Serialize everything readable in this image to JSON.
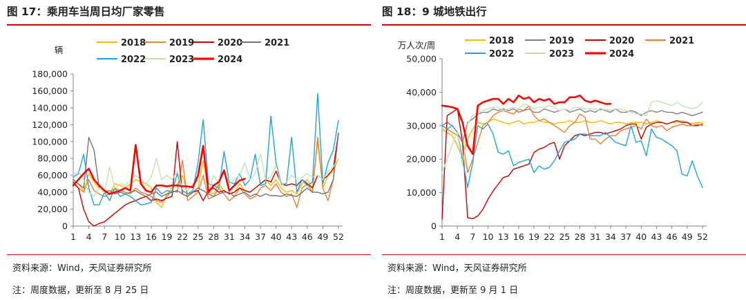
{
  "left": {
    "title": "图 17：乘用车当周日均厂家零售",
    "source": "资料来源：Wind，天风证券研究所",
    "note": "注：周度数据，更新至 8 月 25 日"
  },
  "right": {
    "title": "图 18：9 城地铁出行",
    "source": "资料来源：Wind，天风证券研究所",
    "note": "注：周度数据，更新至 9 月 1 日"
  },
  "chart_data": [
    {
      "type": "line",
      "ylabel": "辆",
      "ylim": [
        0,
        180000
      ],
      "yticks": [
        0,
        20000,
        40000,
        60000,
        80000,
        100000,
        120000,
        140000,
        160000,
        180000
      ],
      "ytick_labels": [
        "0",
        "20,000",
        "40,000",
        "60,000",
        "80,000",
        "100,000",
        "120,000",
        "140,000",
        "160,000",
        "180,000"
      ],
      "xlim": [
        1,
        52
      ],
      "xticks": [
        1,
        4,
        7,
        10,
        13,
        16,
        19,
        22,
        25,
        28,
        31,
        34,
        37,
        40,
        43,
        46,
        49,
        52
      ],
      "legend_position": "top",
      "grid": false,
      "series": [
        {
          "name": "2018",
          "color": "#f5b800",
          "width": 1.4,
          "values": [
            55000,
            50000,
            42000,
            62000,
            52000,
            45000,
            40000,
            38000,
            50000,
            48000,
            45000,
            50000,
            55000,
            52000,
            50000,
            45000,
            28000,
            22000,
            38000,
            45000,
            50000,
            60000,
            38000,
            40000,
            45000,
            78000,
            40000,
            38000,
            50000,
            42000,
            38000,
            40000,
            50000,
            42000,
            40000,
            45000,
            50000,
            55000,
            48000,
            55000,
            45000,
            40000,
            42000,
            38000,
            50000,
            55000,
            45000,
            100000,
            45000,
            60000,
            65000,
            80000
          ]
        },
        {
          "name": "2019",
          "color": "#ed7d31",
          "width": 1.4,
          "values": [
            50000,
            45000,
            40000,
            55000,
            42000,
            38000,
            35000,
            38000,
            45000,
            42000,
            40000,
            38000,
            45000,
            40000,
            38000,
            35000,
            30000,
            28000,
            35000,
            42000,
            40000,
            78000,
            30000,
            35000,
            40000,
            60000,
            32000,
            35000,
            45000,
            38000,
            30000,
            35000,
            45000,
            38000,
            32000,
            35000,
            45000,
            48000,
            42000,
            50000,
            40000,
            35000,
            38000,
            22000,
            45000,
            50000,
            40000,
            105000,
            45000,
            30000,
            55000,
            110000
          ]
        },
        {
          "name": "2020",
          "color": "#c00000",
          "width": 1.4,
          "values": [
            52000,
            45000,
            20000,
            5000,
            0,
            3000,
            5000,
            10000,
            15000,
            20000,
            25000,
            28000,
            30000,
            33000,
            35000,
            30000,
            32000,
            30000,
            33000,
            35000,
            100000,
            38000,
            35000,
            40000,
            42000,
            30000,
            42000,
            45000,
            40000,
            42000,
            38000,
            40000,
            45000,
            42000,
            40000,
            45000,
            50000,
            55000,
            52000,
            65000,
            50000,
            48000,
            50000,
            48000,
            55000,
            50000,
            45000,
            60000,
            55000,
            60000,
            68000,
            110000
          ]
        },
        {
          "name": "2021",
          "color": "#767171",
          "width": 1.4,
          "values": [
            55000,
            50000,
            45000,
            105000,
            90000,
            45000,
            40000,
            42000,
            38000,
            40000,
            38000,
            40000,
            42000,
            38000,
            35000,
            38000,
            40000,
            35000,
            38000,
            40000,
            42000,
            38000,
            35000,
            40000,
            45000,
            42000,
            38000,
            35000,
            38000,
            40000,
            40000,
            35000,
            38000,
            40000,
            35000,
            38000,
            35000,
            38000,
            36000,
            36000,
            35000,
            38000,
            36000,
            35000,
            40000,
            45000,
            40000,
            40000,
            38000,
            40000,
            55000,
            110000
          ]
        },
        {
          "name": "2022",
          "color": "#1fa2d9",
          "width": 1.4,
          "values": [
            58000,
            62000,
            85000,
            45000,
            25000,
            25000,
            40000,
            30000,
            45000,
            35000,
            38000,
            35000,
            30000,
            25000,
            26000,
            28000,
            45000,
            38000,
            42000,
            40000,
            62000,
            42000,
            38000,
            42000,
            75000,
            126000,
            50000,
            48000,
            45000,
            88000,
            52000,
            50000,
            62000,
            48000,
            55000,
            85000,
            48000,
            50000,
            130000,
            75000,
            50000,
            50000,
            105000,
            40000,
            55000,
            48000,
            52000,
            157000,
            50000,
            75000,
            90000,
            125000
          ]
        },
        {
          "name": "2023",
          "color": "#c6e0b4",
          "width": 1.4,
          "values": [
            60000,
            65000,
            55000,
            40000,
            35000,
            45000,
            40000,
            70000,
            45000,
            50000,
            48000,
            55000,
            60000,
            55000,
            50000,
            58000,
            80000,
            55000,
            60000,
            55000,
            65000,
            45000,
            42000,
            50000,
            55000,
            95000,
            40000,
            60000,
            50000,
            65000,
            50000,
            55000,
            60000,
            75000,
            55000,
            62000,
            85000,
            55000,
            58000,
            72000,
            48000,
            52000,
            60000,
            55000,
            58000,
            62000,
            58000,
            60000,
            55000,
            65000,
            70000,
            80000
          ]
        },
        {
          "name": "2024",
          "color": "#ff0000",
          "width": 2.6,
          "values": [
            48000,
            55000,
            62000,
            68000,
            55000,
            48000,
            42000,
            38000,
            40000,
            42000,
            45000,
            42000,
            96000,
            50000,
            42000,
            40000,
            48000,
            48000,
            47000,
            48000,
            48000,
            47000,
            47000,
            46000,
            60000,
            95000,
            40000,
            48000,
            52000,
            66000,
            42000,
            48000,
            54000,
            56000,
            null,
            null,
            null,
            null,
            null,
            null,
            null,
            null,
            null,
            null,
            null,
            null,
            null,
            null,
            null,
            null,
            null,
            null
          ]
        }
      ]
    },
    {
      "type": "line",
      "ylabel": "万人次/周",
      "ylim": [
        0,
        50000
      ],
      "yticks": [
        0,
        10000,
        20000,
        30000,
        40000,
        50000
      ],
      "ytick_labels": [
        "0",
        "10,000",
        "20,000",
        "30,000",
        "40,000",
        "50,000"
      ],
      "xlim": [
        1,
        52
      ],
      "xticks": [
        1,
        4,
        7,
        10,
        13,
        16,
        19,
        22,
        25,
        28,
        31,
        34,
        37,
        40,
        43,
        46,
        49,
        52
      ],
      "legend_position": "top",
      "grid": false,
      "series": [
        {
          "name": "2018",
          "color": "#f5b800",
          "width": 1.4,
          "values": [
            29000,
            28000,
            27000,
            24000,
            20000,
            26000,
            29000,
            31000,
            30500,
            31000,
            32000,
            31500,
            31000,
            30500,
            31000,
            31500,
            30500,
            31000,
            31000,
            31500,
            31000,
            31000,
            30500,
            31000,
            31000,
            31500,
            31000,
            31000,
            31500,
            31000,
            31000,
            31500,
            31000,
            30500,
            31000,
            31000,
            30500,
            31000,
            31000,
            31000,
            30500,
            31000,
            31500,
            31000,
            30500,
            31000,
            31000,
            31500,
            31000,
            30500,
            31000,
            31000
          ]
        },
        {
          "name": "2019",
          "color": "#7f7f7f",
          "width": 1.4,
          "values": [
            30000,
            31000,
            30000,
            28000,
            25000,
            31000,
            32000,
            33500,
            34000,
            34000,
            35000,
            34500,
            35000,
            34500,
            35000,
            34000,
            34500,
            35000,
            34000,
            34000,
            35000,
            34500,
            34000,
            34500,
            35000,
            34000,
            34500,
            35000,
            34000,
            34500,
            34000,
            35000,
            34500,
            34000,
            35000,
            34000,
            34000,
            34500,
            34000,
            33000,
            34000,
            34500,
            34000,
            34500,
            34000,
            34000,
            33500,
            34000,
            33500,
            33000,
            33500,
            34000
          ]
        },
        {
          "name": "2020",
          "color": "#c00000",
          "width": 1.4,
          "values": [
            2000,
            33000,
            34000,
            35000,
            25000,
            2500,
            2200,
            3000,
            5000,
            8000,
            10500,
            12500,
            14500,
            15000,
            17000,
            17500,
            18000,
            18500,
            22000,
            23000,
            23500,
            24500,
            25000,
            20000,
            24000,
            25500,
            27000,
            27500,
            27000,
            27500,
            28000,
            28000,
            27500,
            28000,
            28500,
            29000,
            30000,
            30500,
            30500,
            26000,
            29500,
            30500,
            31000,
            31000,
            30500,
            31000,
            31500,
            31000,
            31000,
            30000,
            30000,
            30500
          ]
        },
        {
          "name": "2021",
          "color": "#ed7d31",
          "width": 1.4,
          "values": [
            30000,
            29000,
            28000,
            27000,
            26000,
            16000,
            20000,
            25000,
            30000,
            31000,
            33000,
            34000,
            34500,
            34000,
            33500,
            35000,
            34500,
            36000,
            33000,
            31500,
            32000,
            31000,
            30000,
            29000,
            28000,
            30000,
            31000,
            33500,
            32500,
            26000,
            26000,
            24500,
            26000,
            27000,
            27000,
            28500,
            29000,
            29500,
            30000,
            29000,
            32000,
            30000,
            29500,
            30000,
            28500,
            29500,
            30000,
            30500,
            30000,
            30000,
            30500,
            30000
          ]
        },
        {
          "name": "2022",
          "color": "#1fa2d9",
          "width": 1.4,
          "values": [
            30000,
            29000,
            30000,
            28000,
            20000,
            11500,
            19000,
            30000,
            29000,
            30500,
            27500,
            22000,
            21500,
            22500,
            18000,
            19000,
            19500,
            20000,
            16000,
            18000,
            17000,
            17500,
            19500,
            22500,
            25000,
            25500,
            26000,
            27500,
            27500,
            27000,
            27000,
            27000,
            28000,
            26500,
            25000,
            24500,
            24000,
            30000,
            25000,
            25500,
            21000,
            29000,
            26500,
            26000,
            25000,
            24000,
            22500,
            15500,
            15000,
            19500,
            15000,
            11500
          ]
        },
        {
          "name": "2023",
          "color": "#c6e0b4",
          "width": 1.4,
          "values": [
            16000,
            20000,
            24500,
            28000,
            18000,
            30500,
            33000,
            34000,
            34500,
            35000,
            35500,
            35500,
            34500,
            35000,
            35500,
            35000,
            36500,
            36000,
            35000,
            35500,
            35500,
            36000,
            35500,
            34500,
            35000,
            34500,
            35500,
            35500,
            35000,
            35000,
            35000,
            34500,
            35000,
            34500,
            35000,
            35000,
            34500,
            34000,
            33500,
            33500,
            33000,
            37000,
            37500,
            37000,
            36500,
            36000,
            37000,
            36000,
            35500,
            35000,
            35500,
            37000
          ]
        },
        {
          "name": "2024",
          "color": "#ff0000",
          "width": 2.6,
          "values": [
            36000,
            35800,
            35500,
            35000,
            31000,
            24000,
            21500,
            36000,
            37000,
            37500,
            38000,
            38000,
            36500,
            38000,
            37000,
            39000,
            38000,
            38500,
            37000,
            38000,
            37500,
            38000,
            36500,
            37000,
            37000,
            38500,
            38500,
            39000,
            37500,
            37000,
            37500,
            37000,
            36500,
            36500,
            null,
            null,
            null,
            null,
            null,
            null,
            null,
            null,
            null,
            null,
            null,
            null,
            null,
            null,
            null,
            null,
            null,
            null
          ]
        }
      ]
    }
  ]
}
